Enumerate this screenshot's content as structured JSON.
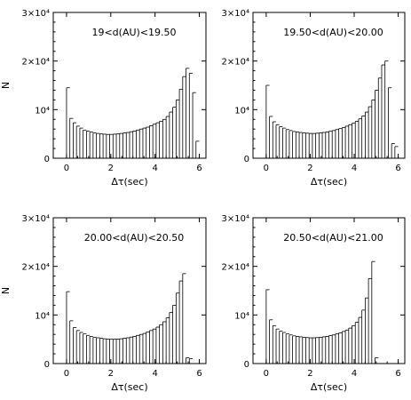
{
  "chart_data": [
    {
      "type": "bar",
      "title": "19<d(AU)<19.50",
      "xlabel": "Δτ(sec)",
      "ylabel": "N",
      "xlim": [
        -0.6,
        6.3
      ],
      "ylim": [
        0,
        30000
      ],
      "xticks": [
        "0",
        "2",
        "4",
        "6"
      ],
      "yticks": [
        "0",
        "10⁴",
        "2×10⁴",
        "3×10⁴"
      ],
      "bin_width": 0.15,
      "x": [
        0.0,
        0.15,
        0.3,
        0.45,
        0.6,
        0.75,
        0.9,
        1.05,
        1.2,
        1.35,
        1.5,
        1.65,
        1.8,
        1.95,
        2.1,
        2.25,
        2.4,
        2.55,
        2.7,
        2.85,
        3.0,
        3.15,
        3.3,
        3.45,
        3.6,
        3.75,
        3.9,
        4.05,
        4.2,
        4.35,
        4.5,
        4.65,
        4.8,
        4.95,
        5.1,
        5.25,
        5.4,
        5.55,
        5.7,
        5.85
      ],
      "values": [
        14500,
        8200,
        7300,
        6600,
        6200,
        5800,
        5600,
        5400,
        5200,
        5100,
        5000,
        4950,
        4900,
        4900,
        4950,
        5000,
        5100,
        5200,
        5300,
        5450,
        5600,
        5800,
        6000,
        6200,
        6400,
        6700,
        7000,
        7300,
        7600,
        8000,
        8600,
        9500,
        10500,
        12000,
        14200,
        16800,
        18500,
        17500,
        13500,
        3500
      ]
    },
    {
      "type": "bar",
      "title": "19.50<d(AU)<20.00",
      "xlabel": "Δτ(sec)",
      "ylabel": "N",
      "xlim": [
        -0.6,
        6.3
      ],
      "ylim": [
        0,
        30000
      ],
      "xticks": [
        "0",
        "2",
        "4",
        "6"
      ],
      "yticks": [
        "0",
        "10⁴",
        "2×10⁴",
        "3×10⁴"
      ],
      "bin_width": 0.15,
      "x": [
        0.0,
        0.15,
        0.3,
        0.45,
        0.6,
        0.75,
        0.9,
        1.05,
        1.2,
        1.35,
        1.5,
        1.65,
        1.8,
        1.95,
        2.1,
        2.25,
        2.4,
        2.55,
        2.7,
        2.85,
        3.0,
        3.15,
        3.3,
        3.45,
        3.6,
        3.75,
        3.9,
        4.05,
        4.2,
        4.35,
        4.5,
        4.65,
        4.8,
        4.95,
        5.1,
        5.25,
        5.4,
        5.55,
        5.7,
        5.85
      ],
      "values": [
        15000,
        8600,
        7500,
        6900,
        6500,
        6200,
        5900,
        5700,
        5500,
        5400,
        5300,
        5200,
        5150,
        5100,
        5100,
        5150,
        5200,
        5300,
        5400,
        5550,
        5700,
        5900,
        6100,
        6300,
        6600,
        6900,
        7200,
        7600,
        8100,
        8700,
        9500,
        10600,
        12000,
        14000,
        16500,
        19200,
        20000,
        14500,
        3000,
        2400
      ]
    },
    {
      "type": "bar",
      "title": "20.00<d(AU)<20.50",
      "xlabel": "Δτ(sec)",
      "ylabel": "N",
      "xlim": [
        -0.6,
        6.3
      ],
      "ylim": [
        0,
        30000
      ],
      "xticks": [
        "0",
        "2",
        "4",
        "6"
      ],
      "yticks": [
        "0",
        "10⁴",
        "2×10⁴",
        "3×10⁴"
      ],
      "bin_width": 0.15,
      "x": [
        0.0,
        0.15,
        0.3,
        0.45,
        0.6,
        0.75,
        0.9,
        1.05,
        1.2,
        1.35,
        1.5,
        1.65,
        1.8,
        1.95,
        2.1,
        2.25,
        2.4,
        2.55,
        2.7,
        2.85,
        3.0,
        3.15,
        3.3,
        3.45,
        3.6,
        3.75,
        3.9,
        4.05,
        4.2,
        4.35,
        4.5,
        4.65,
        4.8,
        4.95,
        5.1,
        5.25,
        5.4,
        5.55
      ],
      "values": [
        14800,
        8800,
        7400,
        6800,
        6400,
        6100,
        5800,
        5600,
        5400,
        5300,
        5200,
        5100,
        5050,
        5000,
        5000,
        5050,
        5100,
        5200,
        5300,
        5450,
        5600,
        5800,
        6000,
        6200,
        6500,
        6800,
        7100,
        7500,
        8000,
        8600,
        9400,
        10500,
        12000,
        14500,
        17000,
        18500,
        1200,
        1000
      ]
    },
    {
      "type": "bar",
      "title": "20.50<d(AU)<21.00",
      "xlabel": "Δτ(sec)",
      "ylabel": "N",
      "xlim": [
        -0.6,
        6.3
      ],
      "ylim": [
        0,
        30000
      ],
      "xticks": [
        "0",
        "2",
        "4",
        "6"
      ],
      "yticks": [
        "0",
        "10⁴",
        "2×10⁴",
        "3×10⁴"
      ],
      "bin_width": 0.15,
      "x": [
        0.0,
        0.15,
        0.3,
        0.45,
        0.6,
        0.75,
        0.9,
        1.05,
        1.2,
        1.35,
        1.5,
        1.65,
        1.8,
        1.95,
        2.1,
        2.25,
        2.4,
        2.55,
        2.7,
        2.85,
        3.0,
        3.15,
        3.3,
        3.45,
        3.6,
        3.75,
        3.9,
        4.05,
        4.2,
        4.35,
        4.5,
        4.65,
        4.8,
        4.95
      ],
      "values": [
        15200,
        9000,
        7800,
        7100,
        6700,
        6400,
        6100,
        5900,
        5700,
        5600,
        5500,
        5400,
        5350,
        5300,
        5300,
        5350,
        5400,
        5500,
        5600,
        5750,
        5900,
        6100,
        6300,
        6600,
        6900,
        7300,
        7800,
        8500,
        9500,
        11000,
        13500,
        17500,
        21000,
        1200
      ]
    }
  ]
}
